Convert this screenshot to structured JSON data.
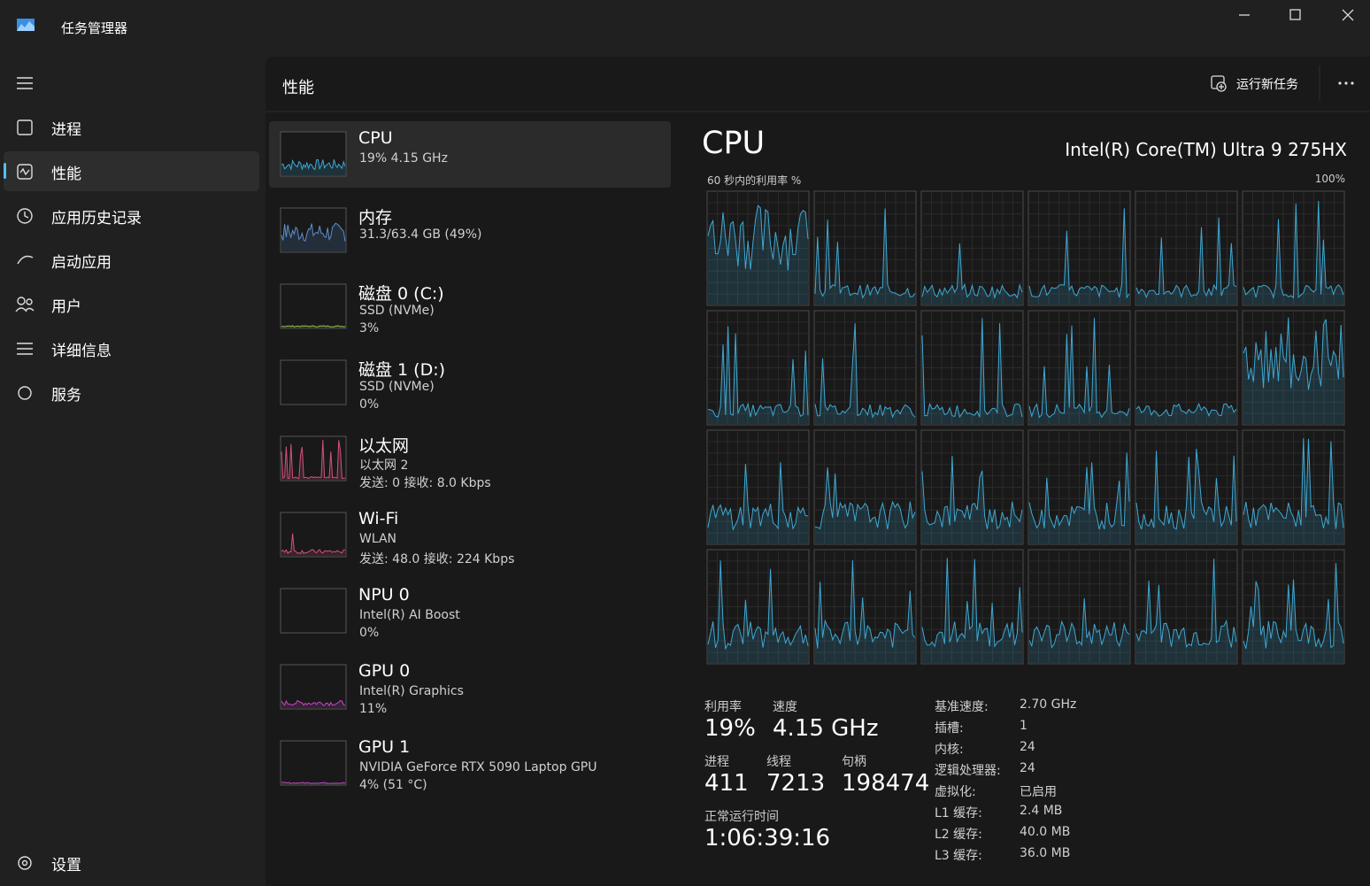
{
  "window": {
    "title": "任务管理器"
  },
  "nav": {
    "items": [
      "进程",
      "性能",
      "应用历史记录",
      "启动应用",
      "用户",
      "详细信息",
      "服务"
    ],
    "settings": "设置"
  },
  "header": {
    "title": "性能",
    "run_new_task": "运行新任务"
  },
  "devices": [
    {
      "name": "CPU",
      "lines": [
        "19% 4.15 GHz"
      ]
    },
    {
      "name": "内存",
      "lines": [
        "31.3/63.4 GB (49%)"
      ]
    },
    {
      "name": "磁盘 0 (C:)",
      "lines": [
        "SSD (NVMe)",
        "3%"
      ]
    },
    {
      "name": "磁盘 1 (D:)",
      "lines": [
        "SSD (NVMe)",
        "0%"
      ]
    },
    {
      "name": "以太网",
      "lines": [
        "以太网 2",
        "发送: 0 接收: 8.0 Kbps"
      ]
    },
    {
      "name": "Wi-Fi",
      "lines": [
        "WLAN",
        "发送: 48.0 接收: 224 Kbps"
      ]
    },
    {
      "name": "NPU 0",
      "lines": [
        "Intel(R) AI Boost",
        "0%"
      ]
    },
    {
      "name": "GPU 0",
      "lines": [
        "Intel(R) Graphics",
        "11%"
      ]
    },
    {
      "name": "GPU 1",
      "lines": [
        "NVIDIA GeForce RTX 5090 Laptop GPU",
        "4% (51 °C)"
      ]
    }
  ],
  "detail": {
    "title": "CPU",
    "model": "Intel(R) Core(TM) Ultra 9 275HX",
    "graph_label": "60 秒内的利用率 %",
    "graph_max": "100%",
    "stats": [
      {
        "label": "利用率",
        "value": "19%"
      },
      {
        "label": "速度",
        "value": "4.15 GHz"
      },
      {
        "label": "进程",
        "value": "411"
      },
      {
        "label": "线程",
        "value": "7213"
      },
      {
        "label": "句柄",
        "value": "198474"
      },
      {
        "label": "正常运行时间",
        "value": "1:06:39:16"
      }
    ],
    "specs": [
      [
        "基准速度:",
        "2.70 GHz"
      ],
      [
        "插槽:",
        "1"
      ],
      [
        "内核:",
        "24"
      ],
      [
        "逻辑处理器:",
        "24"
      ],
      [
        "虚拟化:",
        "已启用"
      ],
      [
        "L1 缓存:",
        "2.4 MB"
      ],
      [
        "L2 缓存:",
        "40.0 MB"
      ],
      [
        "L3 缓存:",
        "36.0 MB"
      ]
    ]
  }
}
